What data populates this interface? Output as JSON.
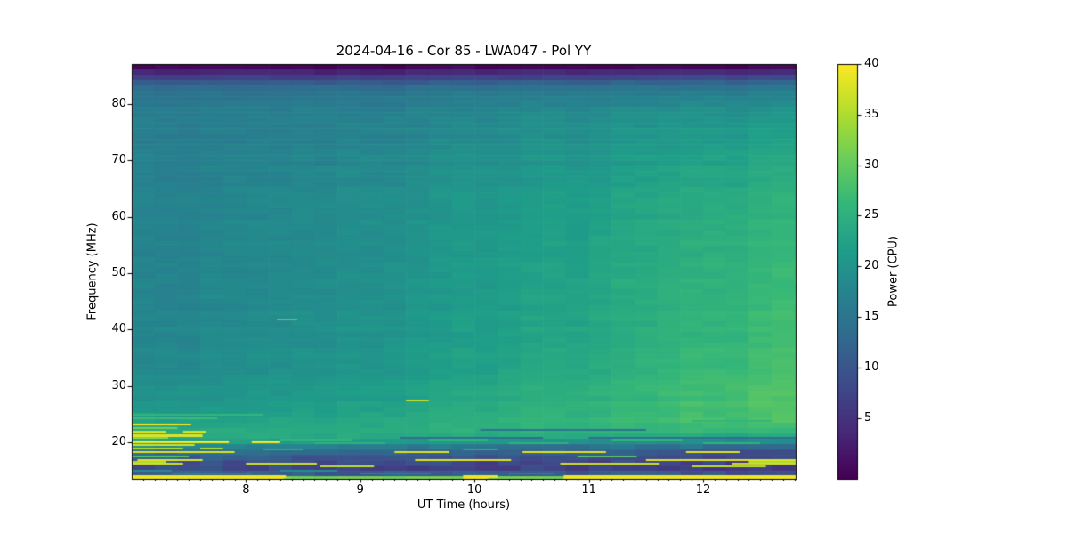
{
  "title": "2024-04-16 - Cor 85 - LWA047 - Pol YY",
  "axes": {
    "xlabel": "UT Time (hours)",
    "ylabel": "Frequency (MHz)",
    "x_ticks": [
      8,
      9,
      10,
      11,
      12
    ],
    "x_minor_tick_step": 0.1,
    "y_ticks": [
      20,
      30,
      40,
      50,
      60,
      70,
      80
    ]
  },
  "colorbar": {
    "label": "Power (CPU)",
    "ticks": [
      5,
      10,
      15,
      20,
      25,
      30,
      35,
      40
    ],
    "range": [
      -1,
      40
    ],
    "colormap": "viridis",
    "gradient": [
      "#440154",
      "#482878",
      "#3e4989",
      "#31688e",
      "#26828e",
      "#1f9e89",
      "#35b779",
      "#6ece58",
      "#b5de2b",
      "#fde725"
    ]
  },
  "chart_data": {
    "type": "heatmap",
    "title": "2024-04-16 - Cor 85 - LWA047 - Pol YY",
    "xlabel": "UT Time (hours)",
    "ylabel": "Frequency (MHz)",
    "zlabel": "Power (CPU)",
    "x_range": [
      7.0,
      12.81
    ],
    "y_range": [
      13.5,
      87.1
    ],
    "z_range": [
      -1,
      40
    ],
    "time_cell_hours": 0.2,
    "freq_cell_mhz": 0.95,
    "time_easing_pow": 1.35,
    "freq_bands": [
      [
        87.1,
        -1.0,
        -1.0
      ],
      [
        86.2,
        0.5,
        0.5
      ],
      [
        85.4,
        4.0,
        5.0
      ],
      [
        84.2,
        9.0,
        11.0
      ],
      [
        83.0,
        13.0,
        15.0
      ],
      [
        81.0,
        15.0,
        18.0
      ],
      [
        78.0,
        15.8,
        20.5
      ],
      [
        72.0,
        16.3,
        23.0
      ],
      [
        65.0,
        16.8,
        24.8
      ],
      [
        57.0,
        17.0,
        26.0
      ],
      [
        48.0,
        17.2,
        26.8
      ],
      [
        40.0,
        17.6,
        27.3
      ],
      [
        33.0,
        18.4,
        28.2
      ],
      [
        28.0,
        19.6,
        28.8
      ],
      [
        25.5,
        21.0,
        29.2
      ],
      [
        23.5,
        22.5,
        28.3
      ],
      [
        22.0,
        23.5,
        26.5
      ],
      [
        20.8,
        24.0,
        22.5
      ],
      [
        19.8,
        22.0,
        16.5
      ],
      [
        19.0,
        16.0,
        11.5
      ],
      [
        18.3,
        13.0,
        9.0
      ],
      [
        17.3,
        10.5,
        7.0
      ],
      [
        16.0,
        8.5,
        6.0
      ],
      [
        15.2,
        7.5,
        5.5
      ],
      [
        14.7,
        9.0,
        7.5
      ],
      [
        14.25,
        12.0,
        10.0
      ],
      [
        13.95,
        26.0,
        22.0
      ],
      [
        13.5,
        38.5,
        38.5
      ]
    ],
    "rfi_stripes": [
      {
        "f": 25.1,
        "power": 26,
        "h": 2,
        "segments": [
          [
            7.0,
            8.15
          ]
        ]
      },
      {
        "f": 24.4,
        "power": 27,
        "h": 2,
        "segments": [
          [
            7.0,
            7.75
          ]
        ]
      },
      {
        "f": 23.3,
        "power": 39,
        "h": 2,
        "segments": [
          [
            7.0,
            7.52
          ]
        ]
      },
      {
        "f": 22.6,
        "power": 31,
        "h": 2,
        "segments": [
          [
            7.0,
            7.4
          ]
        ]
      },
      {
        "f": 22.05,
        "power": 37,
        "h": 3,
        "segments": [
          [
            7.0,
            7.3
          ],
          [
            7.45,
            7.65
          ]
        ]
      },
      {
        "f": 21.4,
        "power": 38,
        "h": 3,
        "segments": [
          [
            7.0,
            7.62
          ]
        ]
      },
      {
        "f": 20.9,
        "power": 33,
        "h": 2,
        "segments": [
          [
            7.0,
            7.32
          ]
        ]
      },
      {
        "f": 20.25,
        "power": 39,
        "h": 3,
        "segments": [
          [
            7.0,
            7.85
          ],
          [
            8.05,
            8.3
          ]
        ]
      },
      {
        "f": 19.65,
        "power": 37,
        "h": 2,
        "segments": [
          [
            7.0,
            7.55
          ]
        ]
      },
      {
        "f": 19.05,
        "power": 35,
        "h": 2,
        "segments": [
          [
            7.0,
            7.45
          ],
          [
            7.6,
            7.8
          ]
        ]
      },
      {
        "f": 18.35,
        "power": 38,
        "h": 2,
        "segments": [
          [
            7.0,
            7.9
          ],
          [
            9.3,
            9.78
          ],
          [
            10.42,
            11.15
          ],
          [
            11.85,
            12.32
          ]
        ]
      },
      {
        "f": 17.65,
        "power": 29,
        "h": 2,
        "segments": [
          [
            7.0,
            7.5
          ],
          [
            10.9,
            11.42
          ]
        ]
      },
      {
        "f": 17.0,
        "power": 38,
        "h": 2,
        "segments": [
          [
            7.05,
            7.62
          ],
          [
            9.48,
            10.32
          ],
          [
            11.5,
            12.81
          ]
        ]
      },
      {
        "f": 16.35,
        "power": 37,
        "h": 2,
        "segments": [
          [
            7.0,
            7.45
          ],
          [
            8.0,
            8.62
          ],
          [
            10.75,
            11.62
          ],
          [
            12.25,
            12.81
          ]
        ]
      },
      {
        "f": 15.8,
        "power": 36,
        "h": 2,
        "segments": [
          [
            8.65,
            9.12
          ],
          [
            11.9,
            12.55
          ]
        ]
      },
      {
        "f": 16.7,
        "power": 35,
        "h": 2,
        "segments": [
          [
            7.0,
            7.3
          ],
          [
            12.4,
            12.81
          ]
        ]
      },
      {
        "f": 15.1,
        "power": 19,
        "h": 2,
        "segments": [
          [
            7.0,
            7.35
          ],
          [
            8.3,
            8.8
          ]
        ]
      },
      {
        "f": 14.55,
        "power": 17,
        "h": 2,
        "segments": [
          [
            7.35,
            8.05
          ],
          [
            9.0,
            9.62
          ],
          [
            10.3,
            10.7
          ]
        ]
      },
      {
        "f": 14.15,
        "power": 39,
        "h": 3,
        "segments": [
          [
            7.0,
            8.35
          ],
          [
            9.95,
            10.2
          ],
          [
            10.8,
            12.81
          ]
        ]
      },
      {
        "f": 13.72,
        "power": 39,
        "h": 4,
        "segments": [
          [
            7.0,
            8.33
          ],
          [
            9.9,
            10.12
          ],
          [
            10.78,
            12.81
          ]
        ]
      },
      {
        "f": 20.6,
        "power": 26,
        "h": 2,
        "segments": [
          [
            8.3,
            8.92
          ],
          [
            9.6,
            10.12
          ],
          [
            11.2,
            11.82
          ]
        ]
      },
      {
        "f": 19.9,
        "power": 25,
        "h": 2,
        "segments": [
          [
            8.6,
            9.22
          ],
          [
            10.3,
            10.82
          ],
          [
            12.0,
            12.5
          ]
        ]
      },
      {
        "f": 21.0,
        "power": 14,
        "h": 2,
        "segments": [
          [
            9.35,
            10.6
          ],
          [
            11.0,
            12.81
          ]
        ]
      },
      {
        "f": 22.4,
        "power": 15,
        "h": 2,
        "segments": [
          [
            10.05,
            11.5
          ]
        ]
      },
      {
        "f": 18.8,
        "power": 24,
        "h": 2,
        "segments": [
          [
            8.15,
            8.5
          ],
          [
            9.9,
            10.2
          ]
        ]
      },
      {
        "f": 23.9,
        "power": 26,
        "h": 2,
        "segments": [
          [
            10.4,
            11.1
          ],
          [
            11.9,
            12.6
          ]
        ]
      },
      {
        "f": 41.9,
        "power": 29,
        "h": 2,
        "segments": [
          [
            8.27,
            8.45
          ]
        ]
      },
      {
        "f": 27.6,
        "power": 36,
        "h": 2,
        "segments": [
          [
            9.4,
            9.6
          ]
        ]
      }
    ]
  }
}
